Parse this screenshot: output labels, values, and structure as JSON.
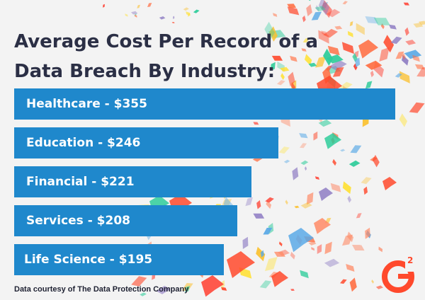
{
  "colors": {
    "background": "#f3f3f3",
    "bar": "#1f88cc",
    "bar_text": "#ffffff",
    "title": "#2b2f45",
    "logo": "#ff492c"
  },
  "title": {
    "line1": "Average Cost Per Record of a",
    "line2": "Data Breach By Industry:"
  },
  "footnote": "Data courtesy of The Data Protection Company",
  "logo": {
    "name": "g2-logo",
    "superscript": "2"
  },
  "chart_data": {
    "type": "bar",
    "orientation": "horizontal",
    "categories": [
      "Healthcare",
      "Education",
      "Financial",
      "Services",
      "Life Science"
    ],
    "values": [
      355,
      246,
      221,
      208,
      195
    ],
    "labels": [
      "Healthcare - $355",
      "Education - $246",
      "Financial - $221",
      "Services - $208",
      "Life Science - $195"
    ],
    "title": "Average Cost Per Record of a Data Breach By Industry:",
    "unit": "$",
    "grid": false,
    "legend": "none"
  }
}
